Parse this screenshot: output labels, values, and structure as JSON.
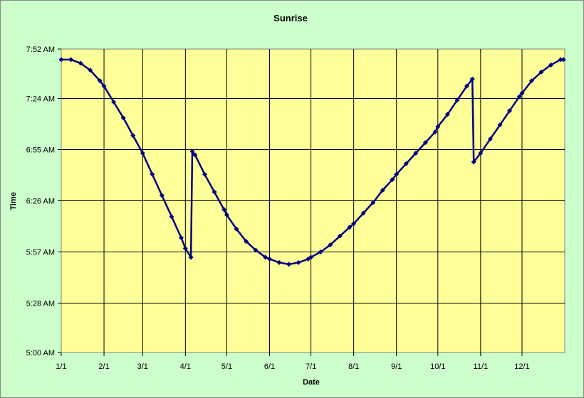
{
  "chart_data": {
    "type": "scatter",
    "title": "Sunrise",
    "xlabel": "Date",
    "ylabel": "Time",
    "x_ticks": [
      "1/1",
      "2/1",
      "3/1",
      "4/1",
      "5/1",
      "6/1",
      "7/1",
      "8/1",
      "9/1",
      "10/1",
      "11/1",
      "12/1"
    ],
    "y_ticks": [
      "5:00 AM",
      "5:28 AM",
      "5:57 AM",
      "6:26 AM",
      "6:55 AM",
      "7:24 AM",
      "7:52 AM"
    ],
    "xlim": [
      "1/1",
      "12/31"
    ],
    "ylim": [
      "5:00 AM",
      "7:52 AM"
    ],
    "grid": true,
    "legend": "none",
    "colors": {
      "background": "#ccffcc",
      "plot_area": "#ffff99",
      "series": "#000080",
      "grid": "#000000"
    },
    "series": [
      {
        "x": [
          "1/1",
          "1/8",
          "1/15",
          "1/22",
          "1/29",
          "2/1",
          "2/8",
          "2/15",
          "2/22",
          "3/1",
          "3/8",
          "3/15",
          "3/22",
          "3/29",
          "4/1",
          "4/5",
          "4/6",
          "4/8",
          "4/15",
          "4/22",
          "4/29",
          "5/1",
          "5/8",
          "5/15",
          "5/22",
          "5/29",
          "6/1",
          "6/8",
          "6/15",
          "6/22",
          "6/29",
          "7/1",
          "7/8",
          "7/15",
          "7/22",
          "7/29",
          "8/1",
          "8/8",
          "8/15",
          "8/22",
          "8/29",
          "9/1",
          "9/8",
          "9/15",
          "9/22",
          "9/29",
          "10/1",
          "10/8",
          "10/15",
          "10/22",
          "10/26",
          "10/27",
          "11/1",
          "11/8",
          "11/15",
          "11/22",
          "11/29",
          "12/1",
          "12/8",
          "12/15",
          "12/22",
          "12/29",
          "12/31"
        ],
        "y": [
          "7:46 AM",
          "7:46 AM",
          "7:44 AM",
          "7:40 AM",
          "7:34 AM",
          "7:31 AM",
          "7:22 AM",
          "7:13 AM",
          "7:03 AM",
          "6:53 AM",
          "6:41 AM",
          "6:29 AM",
          "6:17 AM",
          "6:05 AM",
          "5:59 AM",
          "5:54 AM",
          "6:54 AM",
          "6:52 AM",
          "6:41 AM",
          "6:31 AM",
          "6:21 AM",
          "6:18 AM",
          "6:10 AM",
          "6:03 AM",
          "5:58 AM",
          "5:54 AM",
          "5:53 AM",
          "5:51 AM",
          "5:50 AM",
          "5:51 AM",
          "5:53 AM",
          "5:54 AM",
          "5:57 AM",
          "6:01 AM",
          "6:06 AM",
          "6:11 AM",
          "6:13 AM",
          "6:19 AM",
          "6:25 AM",
          "6:32 AM",
          "6:38 AM",
          "6:41 AM",
          "6:47 AM",
          "6:53 AM",
          "6:59 AM",
          "7:05 AM",
          "7:08 AM",
          "7:15 AM",
          "7:23 AM",
          "7:31 AM",
          "7:35 AM",
          "6:48 AM",
          "6:53 AM",
          "7:01 AM",
          "7:09 AM",
          "7:17 AM",
          "7:25 AM",
          "7:27 AM",
          "7:34 AM",
          "7:39 AM",
          "7:43 AM",
          "7:46 AM",
          "7:46 AM"
        ]
      }
    ]
  }
}
